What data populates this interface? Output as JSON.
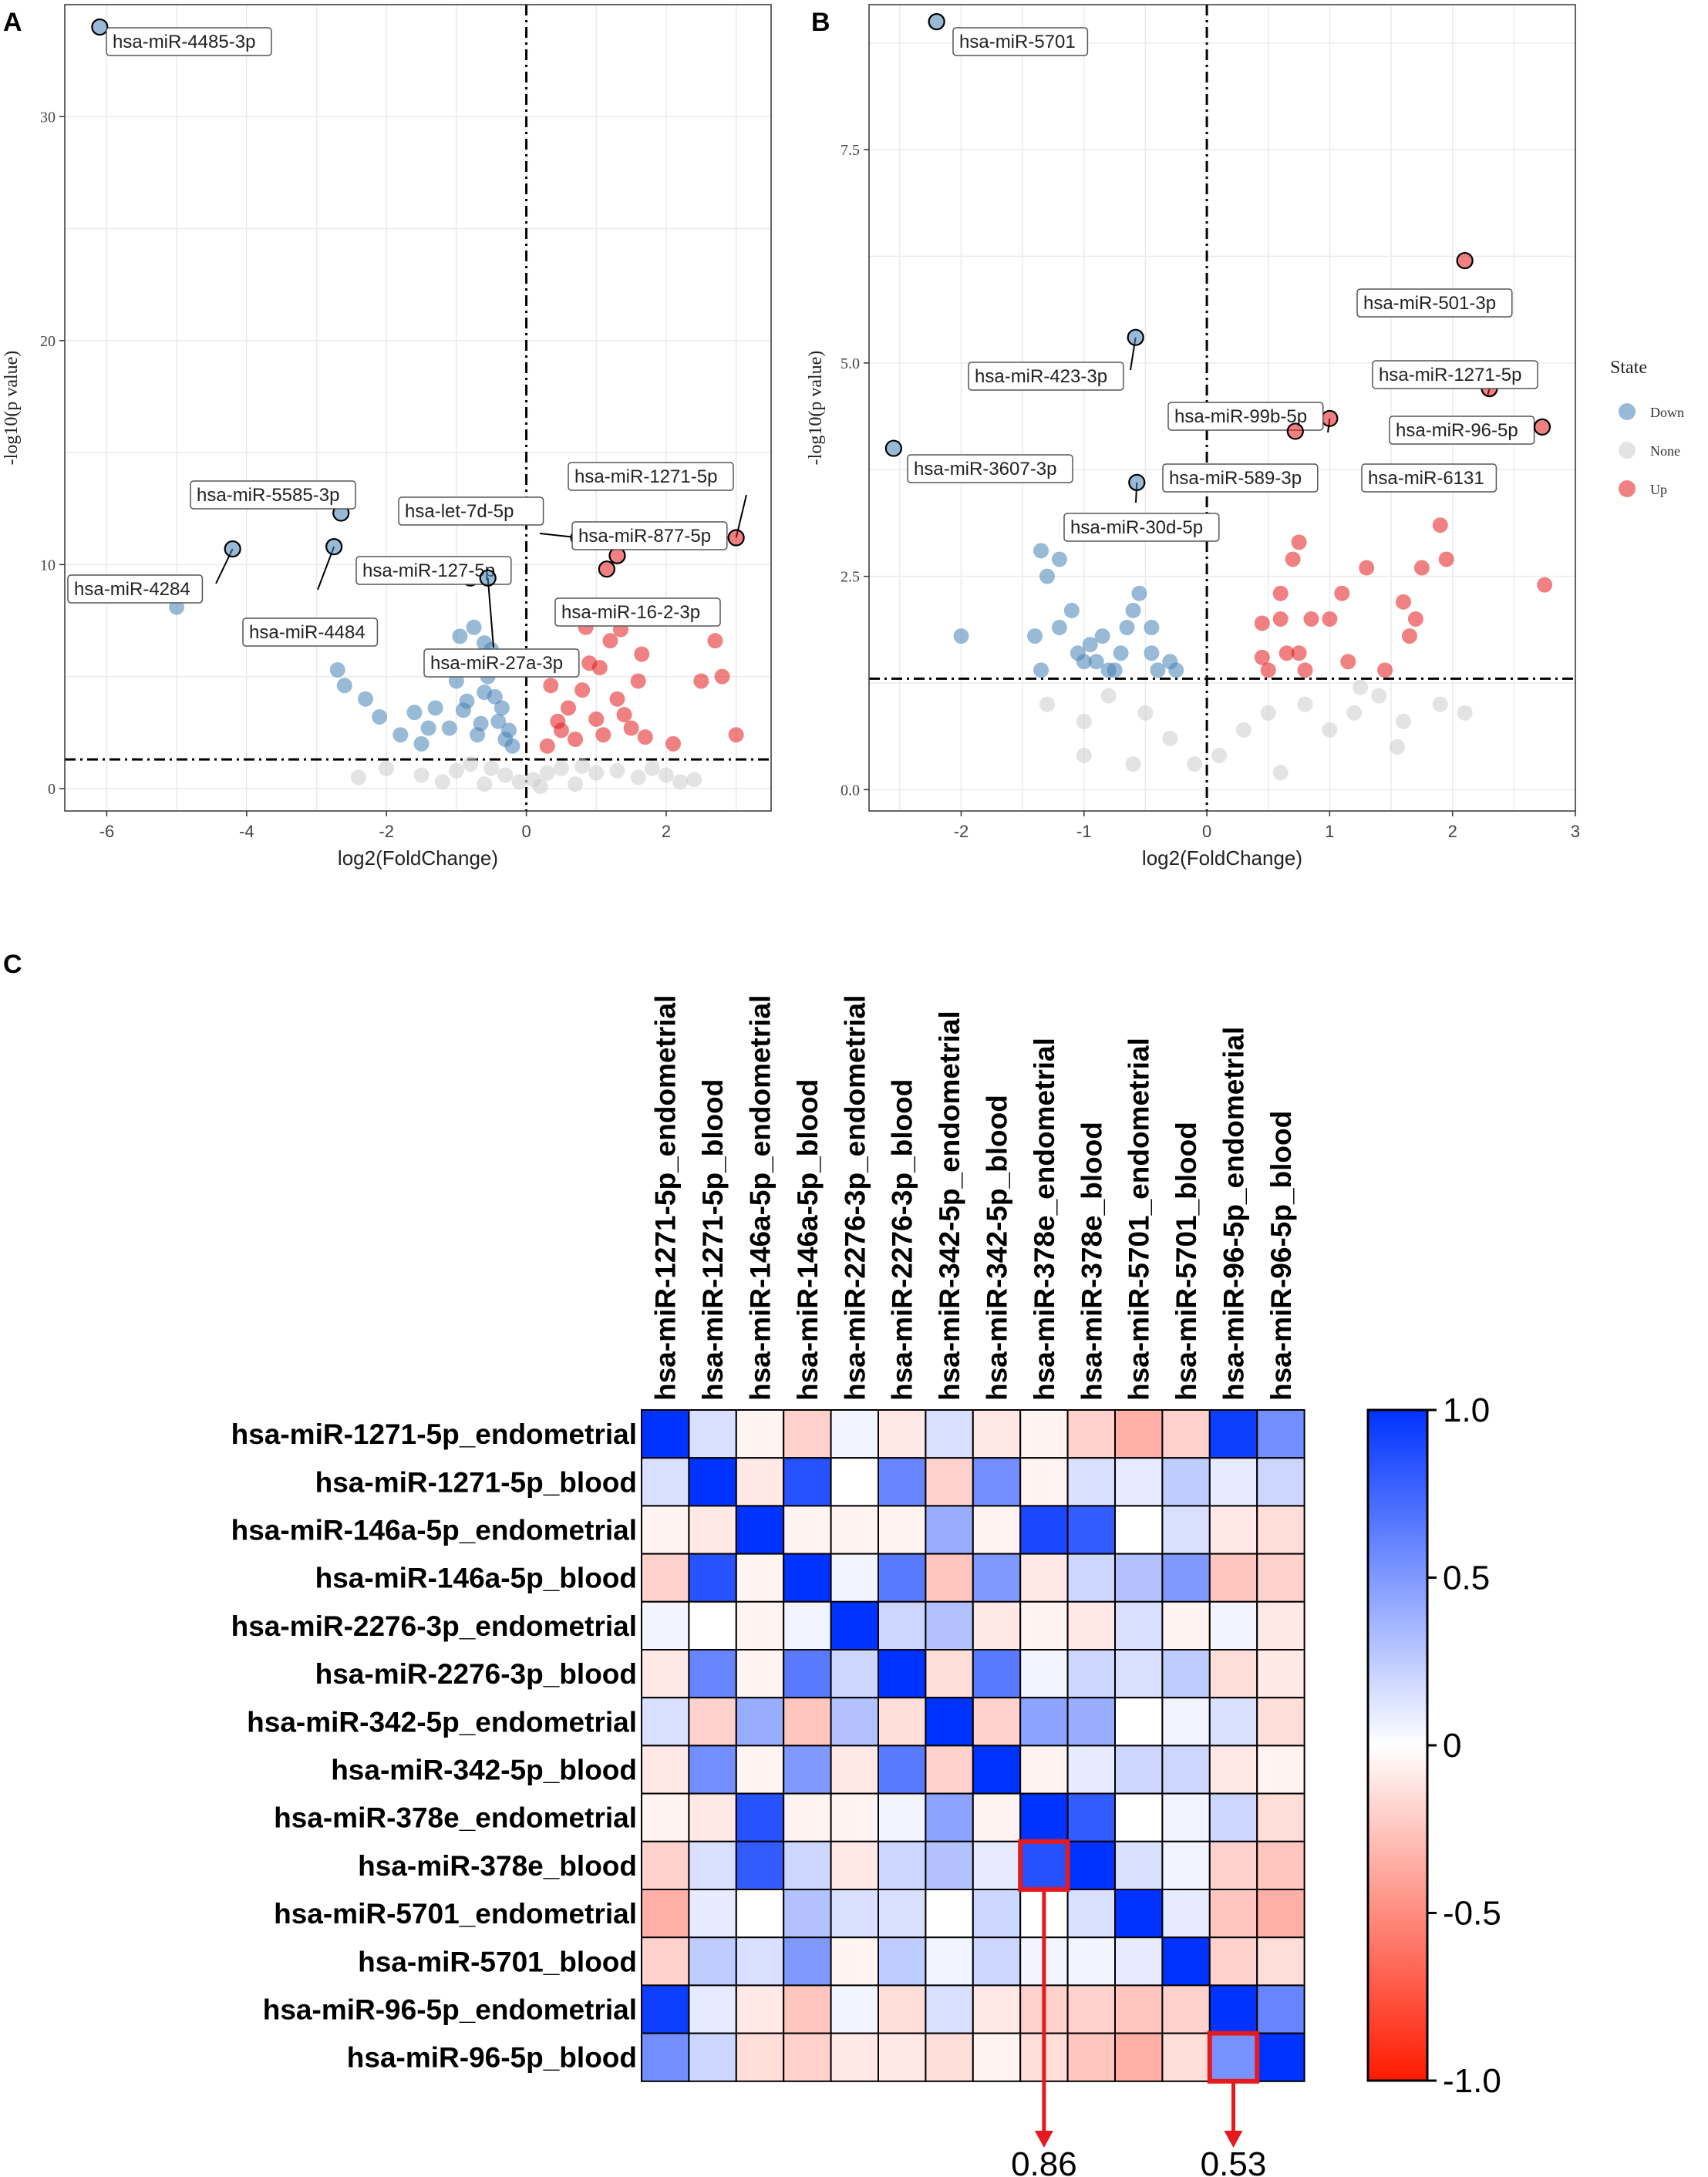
{
  "chart_data": [
    {
      "panel": "A",
      "type": "scatter",
      "title": "",
      "xlabel": "log2(FoldChange)",
      "ylabel": "-log10(p value)",
      "xlim": [
        -6.6,
        3.5
      ],
      "ylim": [
        -1.0,
        35.0
      ],
      "xticks": [
        -6,
        -4,
        -2,
        0,
        2
      ],
      "yticks": [
        0,
        10,
        20,
        30
      ],
      "ytick_labels": [
        "0",
        "10",
        "20",
        "30"
      ],
      "vline": 0,
      "hline": 1.3,
      "colors": {
        "Down": "#4682b4",
        "None": "#cccccc",
        "Up": "#e41a1c"
      },
      "series": [
        {
          "name": "Down",
          "points": [
            [
              -5.0,
              8.1
            ],
            [
              -2.7,
              5.3
            ],
            [
              -2.6,
              4.6
            ],
            [
              -2.3,
              4.0
            ],
            [
              -2.1,
              3.2
            ],
            [
              -1.8,
              2.4
            ],
            [
              -1.5,
              2.0
            ],
            [
              -1.3,
              3.6
            ],
            [
              -1.1,
              2.7
            ],
            [
              -1.0,
              4.8
            ],
            [
              -0.9,
              3.5
            ],
            [
              -0.8,
              5.6
            ],
            [
              -0.7,
              2.4
            ],
            [
              -0.6,
              4.3
            ],
            [
              -0.5,
              6.2
            ],
            [
              -0.4,
              3.0
            ],
            [
              -0.3,
              2.2
            ],
            [
              -0.2,
              1.9
            ],
            [
              -1.6,
              3.4
            ],
            [
              -0.95,
              6.8
            ],
            [
              -0.75,
              7.2
            ],
            [
              -0.55,
              5.0
            ],
            [
              -0.45,
              4.1
            ],
            [
              -1.2,
              5.4
            ],
            [
              -0.85,
              3.9
            ],
            [
              -0.65,
              2.9
            ],
            [
              -0.35,
              3.6
            ],
            [
              -1.4,
              2.7
            ],
            [
              -0.6,
              6.5
            ],
            [
              -0.25,
              2.6
            ]
          ]
        },
        {
          "name": "None",
          "points": [
            [
              -2.0,
              0.9
            ],
            [
              -1.5,
              0.6
            ],
            [
              -1.0,
              0.8
            ],
            [
              -0.8,
              1.1
            ],
            [
              -0.5,
              0.9
            ],
            [
              -0.3,
              0.6
            ],
            [
              -0.1,
              0.3
            ],
            [
              0.1,
              0.4
            ],
            [
              0.3,
              0.7
            ],
            [
              0.5,
              0.9
            ],
            [
              0.8,
              1.0
            ],
            [
              1.0,
              0.7
            ],
            [
              1.3,
              0.8
            ],
            [
              1.6,
              0.5
            ],
            [
              2.0,
              0.6
            ],
            [
              2.4,
              0.4
            ],
            [
              -1.2,
              0.3
            ],
            [
              -0.6,
              0.2
            ],
            [
              0.2,
              0.1
            ],
            [
              0.7,
              0.2
            ],
            [
              1.8,
              0.9
            ],
            [
              -2.4,
              0.5
            ],
            [
              2.2,
              0.3
            ]
          ]
        },
        {
          "name": "Up",
          "points": [
            [
              0.3,
              1.9
            ],
            [
              0.5,
              2.6
            ],
            [
              0.6,
              3.6
            ],
            [
              0.7,
              2.2
            ],
            [
              0.8,
              4.4
            ],
            [
              0.9,
              5.6
            ],
            [
              1.0,
              3.1
            ],
            [
              1.1,
              2.4
            ],
            [
              1.2,
              6.6
            ],
            [
              1.3,
              4.0
            ],
            [
              1.4,
              3.3
            ],
            [
              1.5,
              2.7
            ],
            [
              1.6,
              4.8
            ],
            [
              1.7,
              2.3
            ],
            [
              2.1,
              2.0
            ],
            [
              2.5,
              4.8
            ],
            [
              2.7,
              6.6
            ],
            [
              2.8,
              5.0
            ],
            [
              3.0,
              2.4
            ],
            [
              1.65,
              6.0
            ],
            [
              0.45,
              3.0
            ],
            [
              0.85,
              7.2
            ],
            [
              1.05,
              5.4
            ],
            [
              0.35,
              4.6
            ],
            [
              1.35,
              7.1
            ],
            [
              0.55,
              5.8
            ]
          ]
        }
      ],
      "highlighted": [
        {
          "label": "hsa-miR-4485-3p",
          "x": -6.1,
          "y": 34.0,
          "state": "Down"
        },
        {
          "label": "hsa-miR-4284",
          "x": -4.2,
          "y": 10.7,
          "state": "Down"
        },
        {
          "label": "hsa-miR-5585-3p",
          "x": -2.65,
          "y": 12.3,
          "state": "Down"
        },
        {
          "label": "hsa-miR-4484",
          "x": -2.75,
          "y": 10.8,
          "state": "Down"
        },
        {
          "label": "hsa-miR-127-5p",
          "x": -0.8,
          "y": 9.4,
          "state": "Down"
        },
        {
          "label": "hsa-miR-27a-3p",
          "x": -0.55,
          "y": 9.4,
          "state": "Down"
        },
        {
          "label": "hsa-let-7d-5p",
          "x": 0.75,
          "y": 11.2,
          "state": "Up"
        },
        {
          "label": "hsa-miR-1271-5p",
          "x": 3.0,
          "y": 11.2,
          "state": "Up"
        },
        {
          "label": "hsa-miR-877-5p",
          "x": 1.3,
          "y": 10.4,
          "state": "Up"
        },
        {
          "label": "hsa-miR-16-2-3p",
          "x": 1.15,
          "y": 9.8,
          "state": "Up"
        }
      ]
    },
    {
      "panel": "B",
      "type": "scatter",
      "title": "",
      "xlabel": "log2(FoldChange)",
      "ylabel": "-log10(p value)",
      "xlim": [
        -2.75,
        3.0
      ],
      "ylim": [
        -0.25,
        9.2
      ],
      "xticks": [
        -2,
        -1,
        0,
        1,
        2,
        3
      ],
      "yticks": [
        0.0,
        2.5,
        5.0,
        7.5
      ],
      "ytick_labels": [
        "0.0",
        "2.5",
        "5.0",
        "7.5"
      ],
      "vline": 0,
      "hline": 1.3,
      "colors": {
        "Down": "#4682b4",
        "None": "#cccccc",
        "Up": "#e41a1c"
      },
      "series": [
        {
          "name": "Down",
          "points": [
            [
              -2.0,
              1.8
            ],
            [
              -1.35,
              1.4
            ],
            [
              -1.3,
              2.5
            ],
            [
              -1.2,
              1.9
            ],
            [
              -1.1,
              2.1
            ],
            [
              -1.0,
              1.5
            ],
            [
              -0.95,
              1.7
            ],
            [
              -0.9,
              1.5
            ],
            [
              -0.85,
              1.8
            ],
            [
              -0.8,
              1.4
            ],
            [
              -0.7,
              1.6
            ],
            [
              -0.6,
              2.1
            ],
            [
              -0.5,
              3.0
            ],
            [
              -0.45,
              1.6
            ],
            [
              -0.4,
              1.4
            ],
            [
              -1.35,
              2.8
            ],
            [
              -1.2,
              2.7
            ],
            [
              -0.55,
              2.3
            ],
            [
              -0.45,
              1.9
            ],
            [
              -0.3,
              1.5
            ],
            [
              -1.4,
              1.8
            ],
            [
              -0.75,
              1.4
            ],
            [
              -0.65,
              1.9
            ],
            [
              -0.25,
              1.4
            ],
            [
              -1.05,
              1.6
            ]
          ]
        },
        {
          "name": "None",
          "points": [
            [
              -1.3,
              1.0
            ],
            [
              -1.0,
              0.8
            ],
            [
              -0.8,
              1.1
            ],
            [
              -0.5,
              0.9
            ],
            [
              -0.3,
              0.6
            ],
            [
              -0.1,
              0.3
            ],
            [
              0.1,
              0.4
            ],
            [
              0.3,
              0.7
            ],
            [
              0.5,
              0.9
            ],
            [
              0.8,
              1.0
            ],
            [
              1.0,
              0.7
            ],
            [
              1.2,
              0.9
            ],
            [
              1.4,
              1.1
            ],
            [
              1.6,
              0.8
            ],
            [
              1.9,
              1.0
            ],
            [
              2.1,
              0.9
            ],
            [
              1.55,
              0.5
            ],
            [
              1.25,
              1.2
            ],
            [
              -0.6,
              0.3
            ],
            [
              0.6,
              0.2
            ],
            [
              -1.0,
              0.4
            ]
          ]
        },
        {
          "name": "Up",
          "points": [
            [
              0.45,
              1.95
            ],
            [
              0.5,
              1.4
            ],
            [
              0.6,
              2.3
            ],
            [
              0.6,
              2.0
            ],
            [
              0.65,
              1.6
            ],
            [
              0.7,
              2.7
            ],
            [
              0.75,
              2.9
            ],
            [
              0.8,
              1.4
            ],
            [
              0.85,
              2.0
            ],
            [
              1.0,
              2.0
            ],
            [
              1.1,
              2.3
            ],
            [
              1.15,
              1.5
            ],
            [
              1.3,
              2.6
            ],
            [
              1.45,
              1.4
            ],
            [
              1.6,
              2.2
            ],
            [
              1.65,
              1.8
            ],
            [
              1.7,
              2.0
            ],
            [
              1.75,
              2.6
            ],
            [
              1.9,
              3.1
            ],
            [
              1.95,
              2.7
            ],
            [
              2.75,
              2.4
            ],
            [
              0.75,
              1.6
            ],
            [
              0.45,
              1.55
            ]
          ]
        }
      ],
      "highlighted": [
        {
          "label": "hsa-miR-5701",
          "x": -2.2,
          "y": 9.0,
          "state": "Down"
        },
        {
          "label": "hsa-miR-423-3p",
          "x": -0.58,
          "y": 5.3,
          "state": "Down"
        },
        {
          "label": "hsa-miR-3607-3p",
          "x": -2.55,
          "y": 4.0,
          "state": "Down"
        },
        {
          "label": "hsa-miR-30d-5p",
          "x": -0.57,
          "y": 3.6,
          "state": "Down"
        },
        {
          "label": "hsa-miR-501-3p",
          "x": 2.1,
          "y": 6.2,
          "state": "Up"
        },
        {
          "label": "hsa-miR-1271-5p",
          "x": 2.3,
          "y": 4.7,
          "state": "Up"
        },
        {
          "label": "hsa-miR-99b-5p",
          "x": 1.0,
          "y": 4.35,
          "state": "Up"
        },
        {
          "label": "hsa-miR-589-3p",
          "x": 0.72,
          "y": 4.2,
          "state": "Up"
        },
        {
          "label": "hsa-miR-96-5p",
          "x": 1.88,
          "y": 4.2,
          "state": "Up"
        },
        {
          "label": "hsa-miR-6131",
          "x": 2.73,
          "y": 4.25,
          "state": "Up"
        }
      ],
      "legend": {
        "title": "State",
        "entries": [
          "Down",
          "None",
          "Up"
        ]
      }
    },
    {
      "panel": "C",
      "type": "heatmap",
      "title": "",
      "labels": [
        "hsa-miR-1271-5p_endometrial",
        "hsa-miR-1271-5p_blood",
        "hsa-miR-146a-5p_endometrial",
        "hsa-miR-146a-5p_blood",
        "hsa-miR-2276-3p_endometrial",
        "hsa-miR-2276-3p_blood",
        "hsa-miR-342-5p_endometrial",
        "hsa-miR-342-5p_blood",
        "hsa-miR-378e_endometrial",
        "hsa-miR-378e_blood",
        "hsa-miR-5701_endometrial",
        "hsa-miR-5701_blood",
        "hsa-miR-96-5p_endometrial",
        "hsa-miR-96-5p_blood"
      ],
      "matrix": [
        [
          1.0,
          0.15,
          -0.05,
          -0.2,
          0.05,
          -0.1,
          0.15,
          -0.1,
          -0.05,
          -0.2,
          -0.35,
          -0.2,
          0.95,
          0.55
        ],
        [
          0.15,
          1.0,
          -0.1,
          0.85,
          0.0,
          0.6,
          -0.2,
          0.55,
          -0.05,
          0.15,
          0.1,
          0.25,
          0.1,
          0.2
        ],
        [
          -0.05,
          -0.1,
          1.0,
          -0.05,
          -0.05,
          -0.05,
          0.4,
          -0.05,
          0.9,
          0.8,
          0.0,
          0.15,
          -0.1,
          -0.15
        ],
        [
          -0.2,
          0.85,
          -0.05,
          1.0,
          0.05,
          0.65,
          -0.25,
          0.5,
          -0.1,
          0.2,
          0.3,
          0.5,
          -0.25,
          -0.2
        ],
        [
          0.05,
          0.0,
          -0.05,
          0.05,
          1.0,
          0.2,
          0.3,
          -0.1,
          -0.05,
          -0.1,
          0.15,
          -0.05,
          0.05,
          -0.1
        ],
        [
          -0.1,
          0.6,
          -0.05,
          0.65,
          0.2,
          1.0,
          -0.15,
          0.65,
          0.05,
          0.2,
          0.15,
          0.25,
          -0.15,
          -0.1
        ],
        [
          0.15,
          -0.2,
          0.4,
          -0.25,
          0.3,
          -0.15,
          1.0,
          -0.2,
          0.45,
          0.4,
          0.0,
          0.05,
          0.15,
          -0.15
        ],
        [
          -0.1,
          0.55,
          -0.05,
          0.5,
          -0.1,
          0.65,
          -0.2,
          1.0,
          -0.05,
          0.1,
          0.2,
          0.2,
          -0.1,
          -0.05
        ],
        [
          -0.05,
          -0.1,
          0.85,
          -0.05,
          -0.05,
          0.05,
          0.45,
          -0.05,
          1.0,
          0.8,
          0.0,
          0.05,
          0.2,
          -0.15
        ],
        [
          -0.2,
          0.15,
          0.8,
          0.2,
          -0.1,
          0.2,
          0.3,
          0.1,
          0.86,
          1.0,
          0.15,
          0.05,
          -0.2,
          -0.25
        ],
        [
          -0.35,
          0.1,
          0.0,
          0.3,
          0.15,
          0.15,
          0.0,
          0.2,
          0.0,
          0.15,
          1.0,
          0.1,
          -0.25,
          -0.35
        ],
        [
          -0.2,
          0.25,
          0.15,
          0.5,
          -0.05,
          0.25,
          0.05,
          0.2,
          0.05,
          0.05,
          0.1,
          1.0,
          -0.2,
          -0.15
        ],
        [
          0.95,
          0.1,
          -0.1,
          -0.25,
          0.05,
          -0.15,
          0.15,
          -0.1,
          -0.2,
          -0.2,
          -0.25,
          -0.2,
          1.0,
          0.6
        ],
        [
          0.55,
          0.2,
          -0.15,
          -0.2,
          -0.1,
          -0.1,
          -0.15,
          -0.05,
          -0.15,
          -0.25,
          -0.35,
          -0.15,
          0.53,
          1.0
        ]
      ],
      "colorbar": {
        "min": -1.0,
        "max": 1.0,
        "ticks": [
          "1.0",
          "0.5",
          "0",
          "-0.5",
          "-1.0"
        ],
        "low_color": "#ff1a00",
        "mid_color": "#ffffff",
        "high_color": "#0033ff"
      },
      "highlights": [
        {
          "row": 9,
          "col": 8,
          "value_label": "0.86"
        },
        {
          "row": 13,
          "col": 12,
          "value_label": "0.53"
        }
      ]
    }
  ]
}
